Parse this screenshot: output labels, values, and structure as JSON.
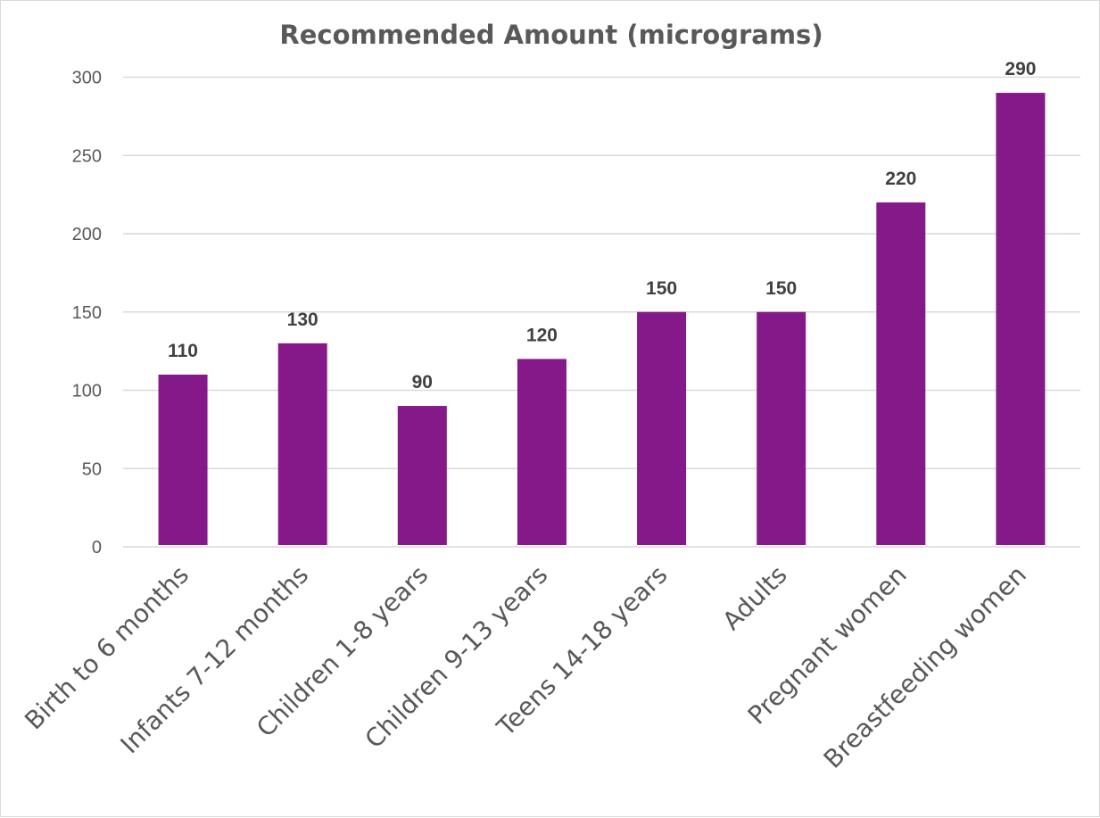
{
  "chart_data": {
    "type": "bar",
    "title": "Recommended Amount (micrograms)",
    "xlabel": "",
    "ylabel": "",
    "categories": [
      "Birth to 6 months",
      "Infants 7-12 months",
      "Children 1-8 years",
      "Children 9-13 years",
      "Teens 14-18 years",
      "Adults",
      "Pregnant women",
      "Breastfeeding women"
    ],
    "values": [
      110,
      130,
      90,
      120,
      150,
      150,
      220,
      290
    ],
    "ylim": [
      0,
      300
    ],
    "yticks": [
      0,
      50,
      100,
      150,
      200,
      250,
      300
    ],
    "grid": true,
    "legend": "none",
    "data_labels": true,
    "bar_color": "#86198a"
  }
}
